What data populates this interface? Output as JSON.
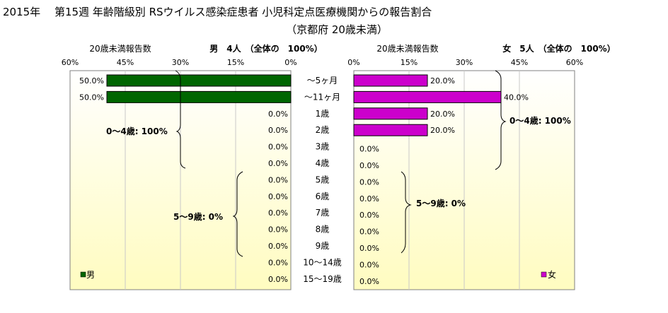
{
  "title_line1": "2015年　 第15週 年齢階級別 RSウイルス感染症患者 小児科定点医療機関からの報告割合",
  "title_line2": "（京都府 20歳未満）",
  "colors": {
    "male": "#006600",
    "female": "#cc00cc",
    "bg_top": "#ffffff",
    "bg_bottom": "#fffcc0",
    "grid": "#c8c8c8"
  },
  "chart_data": {
    "type": "bar",
    "orientation": "horizontal",
    "categories": [
      "〜5ヶ月",
      "〜11ヶ月",
      "1歳",
      "2歳",
      "3歳",
      "4歳",
      "5歳",
      "6歳",
      "7歳",
      "8歳",
      "9歳",
      "10〜14歳",
      "15〜19歳"
    ],
    "xlim": [
      0,
      60
    ],
    "ticks": [
      "60%",
      "45%",
      "30%",
      "15%",
      "0%"
    ],
    "ticks_right": [
      "0%",
      "15%",
      "30%",
      "45%",
      "60%"
    ],
    "series": [
      {
        "name": "男",
        "header_left": "20歳未満報告数",
        "header_right": "男　4人　（全体の　100%）",
        "values": [
          50.0,
          50.0,
          0.0,
          0.0,
          0.0,
          0.0,
          0.0,
          0.0,
          0.0,
          0.0,
          0.0,
          0.0,
          0.0
        ],
        "labels": [
          "50.0%",
          "50.0%",
          "0.0%",
          "0.0%",
          "0.0%",
          "0.0%",
          "0.0%",
          "0.0%",
          "0.0%",
          "0.0%",
          "0.0%",
          "0.0%",
          "0.0%"
        ],
        "annotations": [
          "0〜4歳: 100%",
          "5〜9歳: 0%"
        ]
      },
      {
        "name": "女",
        "header_left": "20歳未満報告数",
        "header_right": "女　5人　（全体の　100%）",
        "values": [
          20.0,
          40.0,
          20.0,
          20.0,
          0.0,
          0.0,
          0.0,
          0.0,
          0.0,
          0.0,
          0.0,
          0.0,
          0.0
        ],
        "labels": [
          "20.0%",
          "40.0%",
          "20.0%",
          "20.0%",
          "0.0%",
          "0.0%",
          "0.0%",
          "0.0%",
          "0.0%",
          "0.0%",
          "0.0%",
          "0.0%",
          "0.0%"
        ],
        "annotations": [
          "0〜4歳: 100%",
          "5〜9歳: 0%"
        ]
      }
    ]
  }
}
